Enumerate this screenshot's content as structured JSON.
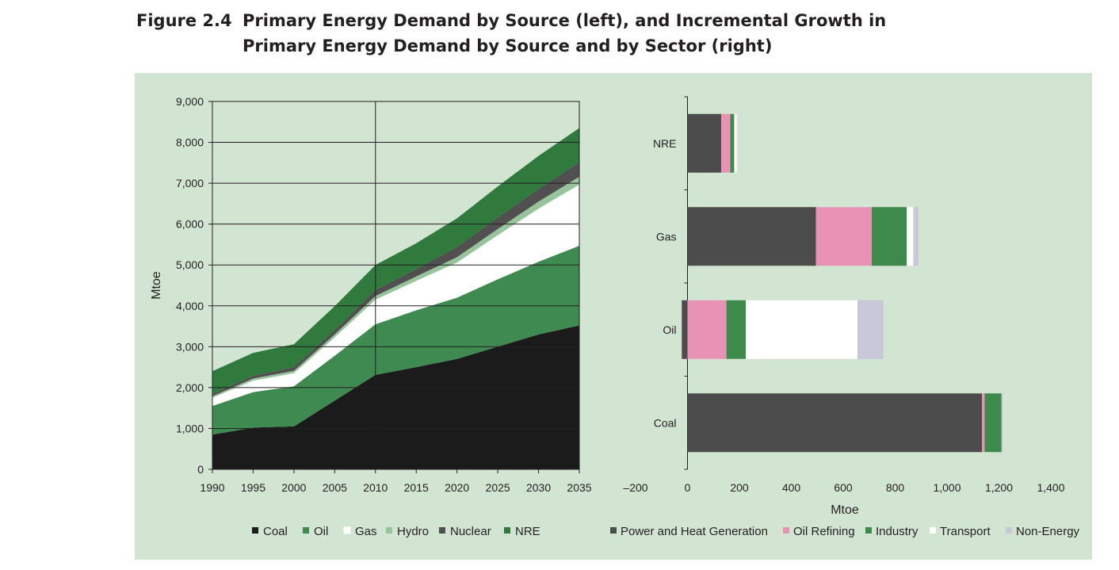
{
  "figure": {
    "label": "Figure 2.4",
    "title_line1": "Primary Energy Demand by Source (left), and Incremental Growth in",
    "title_line2": "Primary Energy Demand by Source and by Sector (right)",
    "background": "#d2e4d2"
  },
  "chart_data": [
    {
      "type": "area",
      "stacked": true,
      "x": [
        1990,
        1995,
        2000,
        2005,
        2010,
        2015,
        2020,
        2025,
        2030,
        2035
      ],
      "ylabel": "Mtoe",
      "xlabel": "",
      "ylim": [
        0,
        9000
      ],
      "xlim": [
        1990,
        2035
      ],
      "yticks": [
        0,
        1000,
        2000,
        3000,
        4000,
        5000,
        6000,
        7000,
        8000,
        9000
      ],
      "ytick_labels": [
        "0",
        "1,000",
        "2,000",
        "3,000",
        "4,000",
        "5,000",
        "6,000",
        "7,000",
        "8,000",
        "9,000"
      ],
      "xtick_labels": [
        "1990",
        "1995",
        "2000",
        "2005",
        "2010",
        "2015",
        "2020",
        "2025",
        "2030",
        "2035"
      ],
      "grid": "horizontal",
      "reference_line_x": 2010,
      "legend_position": "bottom",
      "series": [
        {
          "name": "Coal",
          "color": "#1b1b1b",
          "values": [
            850,
            1020,
            1050,
            1680,
            2310,
            2500,
            2700,
            3000,
            3300,
            3520
          ]
        },
        {
          "name": "Oil",
          "color": "#3f8a50",
          "values": [
            700,
            870,
            980,
            1100,
            1240,
            1390,
            1500,
            1650,
            1780,
            1950
          ]
        },
        {
          "name": "Gas",
          "color": "#ffffff",
          "values": [
            200,
            280,
            320,
            450,
            600,
            720,
            860,
            1080,
            1300,
            1500
          ]
        },
        {
          "name": "Hydro",
          "color": "#98c49c",
          "values": [
            40,
            50,
            60,
            70,
            90,
            110,
            130,
            150,
            170,
            190
          ]
        },
        {
          "name": "Nuclear",
          "color": "#505050",
          "values": [
            50,
            70,
            90,
            110,
            150,
            180,
            250,
            280,
            310,
            350
          ]
        },
        {
          "name": "NRE",
          "color": "#2f7a3c",
          "values": [
            560,
            560,
            560,
            580,
            610,
            630,
            700,
            760,
            810,
            840
          ]
        }
      ]
    },
    {
      "type": "bar",
      "orientation": "horizontal",
      "stacked": true,
      "categories": [
        "NRE",
        "Gas",
        "Oil",
        "Coal"
      ],
      "xlabel": "Mtoe",
      "ylabel": "",
      "xlim": [
        -200,
        1400
      ],
      "xticks": [
        -200,
        0,
        200,
        400,
        600,
        800,
        1000,
        1200,
        1400
      ],
      "xtick_labels": [
        "–200",
        "0",
        "200",
        "400",
        "600",
        "800",
        "1,000",
        "1,200",
        "1,400"
      ],
      "legend_position": "bottom",
      "series": [
        {
          "name": "Power and Heat Generation",
          "color": "#4b4c4b",
          "values": [
            130,
            495,
            -22,
            1135
          ]
        },
        {
          "name": "Oil Refining",
          "color": "#e892b6",
          "values": [
            35,
            215,
            150,
            10
          ]
        },
        {
          "name": "Industry",
          "color": "#3d8a4c",
          "values": [
            15,
            135,
            75,
            65
          ]
        },
        {
          "name": "Transport",
          "color": "#ffffff",
          "values": [
            10,
            25,
            430,
            0
          ]
        },
        {
          "name": "Non-Energy",
          "color": "#c8c8d8",
          "values": [
            0,
            20,
            100,
            5
          ]
        }
      ]
    }
  ]
}
